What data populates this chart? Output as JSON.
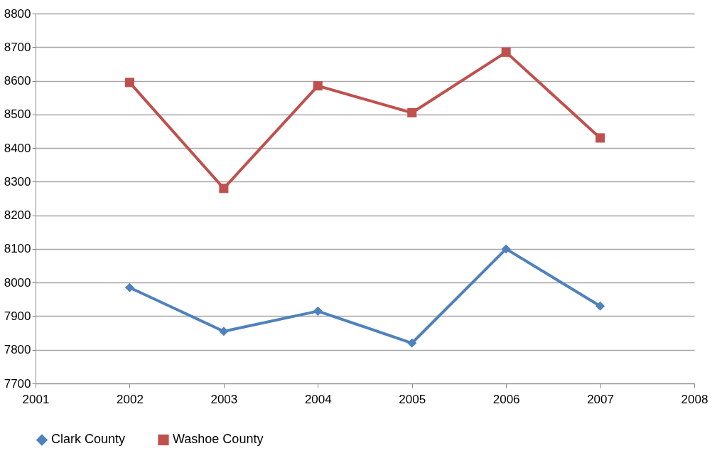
{
  "chart_data": {
    "type": "line",
    "x": [
      2002,
      2003,
      2004,
      2005,
      2006,
      2007
    ],
    "series": [
      {
        "name": "Clark County",
        "color": "#4f81bd",
        "marker": "diamond",
        "values": [
          7985,
          7855,
          7915,
          7820,
          8100,
          7930
        ]
      },
      {
        "name": "Washoe County",
        "color": "#c0504d",
        "marker": "square",
        "values": [
          8595,
          8280,
          8585,
          8505,
          8685,
          8430
        ]
      }
    ],
    "xlim": [
      2001,
      2008
    ],
    "xticks": [
      2001,
      2002,
      2003,
      2004,
      2005,
      2006,
      2007,
      2008
    ],
    "ylim": [
      7700,
      8800
    ],
    "yticks": [
      7700,
      7800,
      7900,
      8000,
      8100,
      8200,
      8300,
      8400,
      8500,
      8600,
      8700,
      8800
    ],
    "grid": "y",
    "legend": "bottom",
    "line_style": "solid"
  }
}
